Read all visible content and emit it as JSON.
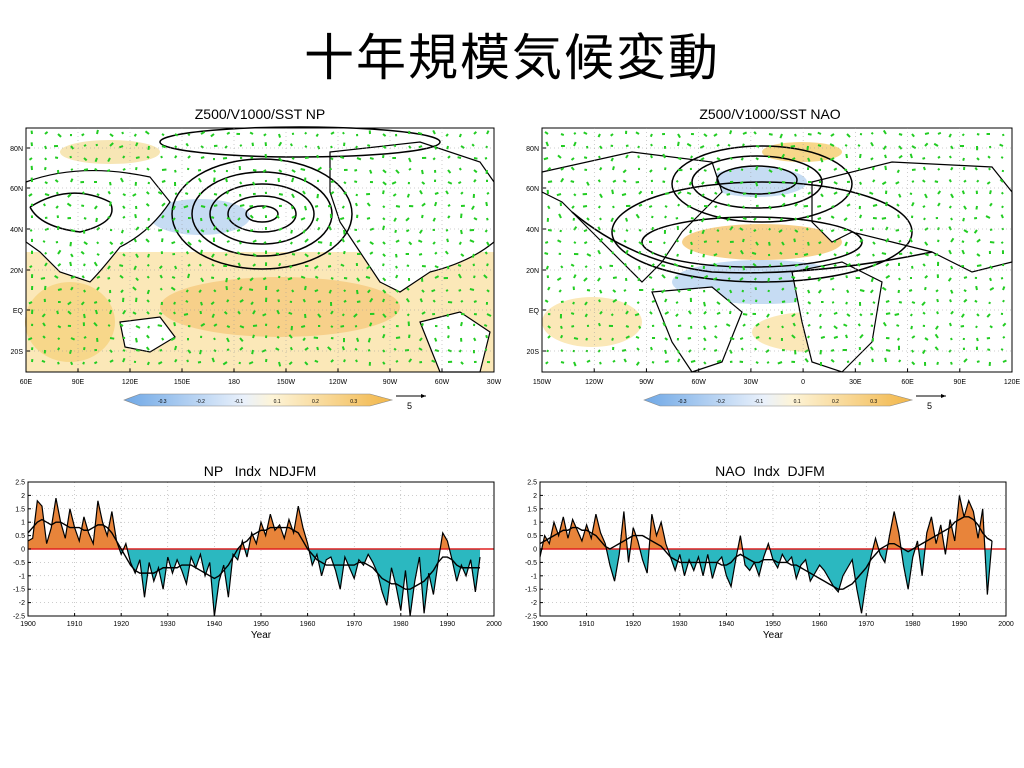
{
  "page": {
    "title": "十年規模気候変動"
  },
  "colors": {
    "orange": "#e8843a",
    "teal": "#2bb8c0",
    "contour": "#000000",
    "vector": "#22cc22",
    "land": "#ffffff",
    "warm_sst": "#f7d78a",
    "cool_sst": "#c6dcf3"
  },
  "maps": [
    {
      "id": "np",
      "title": "Z500/V1000/SST NP",
      "lat_labels": [
        "80N",
        "60N",
        "40N",
        "20N",
        "EQ",
        "20S"
      ],
      "lon_labels": [
        "60E",
        "90E",
        "120E",
        "150E",
        "180",
        "150W",
        "120W",
        "90W",
        "60W",
        "30W"
      ],
      "colorbar_labels": [
        "-0.3",
        "-0.2",
        "-0.1",
        "0.1",
        "0.2",
        "0.3"
      ],
      "vector_ref": "5"
    },
    {
      "id": "nao",
      "title": "Z500/V1000/SST NAO",
      "lat_labels": [
        "80N",
        "60N",
        "40N",
        "20N",
        "EQ",
        "20S"
      ],
      "lon_labels": [
        "150W",
        "120W",
        "90W",
        "60W",
        "30W",
        "0",
        "30E",
        "60E",
        "90E",
        "120E"
      ],
      "colorbar_labels": [
        "-0.3",
        "-0.2",
        "-0.1",
        "0.1",
        "0.2",
        "0.3"
      ],
      "vector_ref": "5"
    }
  ],
  "chart_data": [
    {
      "type": "area",
      "title": "NP   Indx  NDJFM",
      "xlabel": "Year",
      "ylabel": "",
      "xlim": [
        1900,
        2000
      ],
      "ylim": [
        -2.5,
        2.5
      ],
      "x_ticks": [
        "1900",
        "1910",
        "1920",
        "1930",
        "1940",
        "1950",
        "1960",
        "1970",
        "1980",
        "1990",
        "2000"
      ],
      "y_ticks": [
        "2.5",
        "2",
        "1.5",
        "1",
        "0.5",
        "0",
        "-0.5",
        "-1",
        "-1.5",
        "-2",
        "-2.5"
      ],
      "x": [
        1900,
        1901,
        1902,
        1903,
        1904,
        1905,
        1906,
        1907,
        1908,
        1909,
        1910,
        1911,
        1912,
        1913,
        1914,
        1915,
        1916,
        1917,
        1918,
        1919,
        1920,
        1921,
        1922,
        1923,
        1924,
        1925,
        1926,
        1927,
        1928,
        1929,
        1930,
        1931,
        1932,
        1933,
        1934,
        1935,
        1936,
        1937,
        1938,
        1939,
        1940,
        1941,
        1942,
        1943,
        1944,
        1945,
        1946,
        1947,
        1948,
        1949,
        1950,
        1951,
        1952,
        1953,
        1954,
        1955,
        1956,
        1957,
        1958,
        1959,
        1960,
        1961,
        1962,
        1963,
        1964,
        1965,
        1966,
        1967,
        1968,
        1969,
        1970,
        1971,
        1972,
        1973,
        1974,
        1975,
        1976,
        1977,
        1978,
        1979,
        1980,
        1981,
        1982,
        1983,
        1984,
        1985,
        1986,
        1987,
        1988,
        1989,
        1990,
        1991,
        1992,
        1993,
        1994,
        1995,
        1996,
        1997
      ],
      "values": [
        0.3,
        0.4,
        1.8,
        1.6,
        0.2,
        0.8,
        1.9,
        1.0,
        0.4,
        1.5,
        0.8,
        0.3,
        1.2,
        0.6,
        0.2,
        1.8,
        1.0,
        0.5,
        1.4,
        0.3,
        -0.2,
        0.2,
        -0.5,
        -0.9,
        -0.4,
        -1.8,
        -0.5,
        -1.2,
        -0.7,
        -1.5,
        -0.3,
        -0.9,
        -0.4,
        -0.8,
        -1.3,
        -0.3,
        -0.7,
        -0.2,
        -1.0,
        -0.5,
        -2.5,
        -1.2,
        -0.6,
        -1.8,
        -0.2,
        -0.4,
        0.3,
        -0.3,
        0.6,
        0.2,
        1.0,
        0.5,
        1.3,
        0.7,
        0.9,
        0.4,
        1.1,
        0.6,
        1.6,
        0.8,
        0.2,
        -0.6,
        -0.2,
        -1.0,
        -0.4,
        -0.3,
        -0.8,
        -1.5,
        -0.3,
        -0.7,
        -1.1,
        -0.4,
        -0.6,
        -0.2,
        -0.5,
        -0.9,
        -1.6,
        -2.1,
        -0.7,
        -1.4,
        -2.3,
        -0.8,
        -2.5,
        -1.2,
        -0.3,
        -2.4,
        -0.9,
        -1.7,
        -0.5,
        0.6,
        0.3,
        -0.4,
        -1.2,
        -0.6,
        -1.0,
        -0.4,
        -1.6,
        -0.3
      ],
      "smooth": [
        0.6,
        0.8,
        1.0,
        1.1,
        1.0,
        0.9,
        1.0,
        1.0,
        0.9,
        0.8,
        0.8,
        0.8,
        0.7,
        0.7,
        0.8,
        0.9,
        0.9,
        0.8,
        0.6,
        0.3,
        0.0,
        -0.3,
        -0.6,
        -0.8,
        -0.9,
        -0.9,
        -0.9,
        -0.9,
        -0.8,
        -0.7,
        -0.7,
        -0.7,
        -0.7,
        -0.6,
        -0.6,
        -0.6,
        -0.7,
        -0.8,
        -0.9,
        -1.0,
        -1.1,
        -1.0,
        -0.8,
        -0.6,
        -0.3,
        0.0,
        0.2,
        0.3,
        0.5,
        0.6,
        0.7,
        0.7,
        0.8,
        0.8,
        0.8,
        0.8,
        0.8,
        0.7,
        0.6,
        0.3,
        0.0,
        -0.2,
        -0.4,
        -0.5,
        -0.6,
        -0.6,
        -0.6,
        -0.6,
        -0.6,
        -0.6,
        -0.6,
        -0.5,
        -0.5,
        -0.6,
        -0.7,
        -0.9,
        -1.1,
        -1.2,
        -1.3,
        -1.3,
        -1.4,
        -1.5,
        -1.5,
        -1.4,
        -1.3,
        -1.2,
        -1.0,
        -0.8,
        -0.5,
        -0.3,
        -0.3,
        -0.4,
        -0.6,
        -0.7,
        -0.7,
        -0.7,
        -0.7,
        -0.7
      ],
      "positive_color": "#e8843a",
      "negative_color": "#2bb8c0"
    },
    {
      "type": "area",
      "title": "NAO  Indx  DJFM",
      "xlabel": "Year",
      "ylabel": "",
      "xlim": [
        1900,
        2000
      ],
      "ylim": [
        -2.5,
        2.5
      ],
      "x_ticks": [
        "1900",
        "1910",
        "1920",
        "1930",
        "1940",
        "1950",
        "1960",
        "1970",
        "1980",
        "1990",
        "2000"
      ],
      "y_ticks": [
        "2.5",
        "2",
        "1.5",
        "1",
        "0.5",
        "0",
        "-0.5",
        "-1",
        "-1.5",
        "-2",
        "-2.5"
      ],
      "x": [
        1900,
        1901,
        1902,
        1903,
        1904,
        1905,
        1906,
        1907,
        1908,
        1909,
        1910,
        1911,
        1912,
        1913,
        1914,
        1915,
        1916,
        1917,
        1918,
        1919,
        1920,
        1921,
        1922,
        1923,
        1924,
        1925,
        1926,
        1927,
        1928,
        1929,
        1930,
        1931,
        1932,
        1933,
        1934,
        1935,
        1936,
        1937,
        1938,
        1939,
        1940,
        1941,
        1942,
        1943,
        1944,
        1945,
        1946,
        1947,
        1948,
        1949,
        1950,
        1951,
        1952,
        1953,
        1954,
        1955,
        1956,
        1957,
        1958,
        1959,
        1960,
        1961,
        1962,
        1963,
        1964,
        1965,
        1966,
        1967,
        1968,
        1969,
        1970,
        1971,
        1972,
        1973,
        1974,
        1975,
        1976,
        1977,
        1978,
        1979,
        1980,
        1981,
        1982,
        1983,
        1984,
        1985,
        1986,
        1987,
        1988,
        1989,
        1990,
        1991,
        1992,
        1993,
        1994,
        1995,
        1996,
        1997
      ],
      "values": [
        -0.3,
        0.5,
        0.2,
        1.0,
        0.5,
        1.2,
        0.4,
        1.1,
        0.7,
        0.3,
        0.9,
        0.4,
        1.3,
        0.6,
        0.2,
        -0.6,
        -1.2,
        -0.2,
        1.4,
        -0.5,
        0.8,
        0.3,
        -0.4,
        -0.9,
        1.3,
        0.5,
        1.0,
        0.2,
        -0.3,
        -0.8,
        -0.2,
        -1.0,
        -0.4,
        -0.8,
        -0.3,
        -1.0,
        -0.2,
        -1.1,
        -0.5,
        -0.3,
        -1.0,
        -1.4,
        -0.4,
        0.5,
        -0.6,
        -0.8,
        -0.5,
        -1.0,
        -0.3,
        0.2,
        -0.4,
        -0.7,
        -0.2,
        -0.5,
        -0.3,
        -1.1,
        -0.6,
        -0.4,
        -1.2,
        -0.9,
        -0.6,
        -0.8,
        -1.1,
        -1.4,
        -1.6,
        -1.0,
        -0.7,
        -0.4,
        -1.5,
        -2.4,
        -1.2,
        -0.3,
        0.4,
        -0.2,
        -0.5,
        0.5,
        1.4,
        0.6,
        -0.6,
        -1.5,
        -0.3,
        0.3,
        -1.0,
        0.6,
        1.2,
        0.2,
        0.9,
        -0.2,
        1.1,
        0.3,
        2.0,
        1.2,
        1.8,
        1.4,
        0.4,
        1.5,
        -1.7,
        0.3
      ],
      "smooth": [
        0.2,
        0.3,
        0.4,
        0.5,
        0.6,
        0.7,
        0.7,
        0.8,
        0.8,
        0.7,
        0.7,
        0.6,
        0.5,
        0.3,
        0.1,
        0.0,
        0.1,
        0.2,
        0.3,
        0.4,
        0.5,
        0.5,
        0.5,
        0.4,
        0.3,
        0.2,
        0.1,
        -0.1,
        -0.3,
        -0.4,
        -0.5,
        -0.5,
        -0.5,
        -0.5,
        -0.5,
        -0.5,
        -0.5,
        -0.5,
        -0.5,
        -0.6,
        -0.6,
        -0.5,
        -0.3,
        -0.2,
        -0.3,
        -0.4,
        -0.5,
        -0.5,
        -0.4,
        -0.4,
        -0.4,
        -0.5,
        -0.5,
        -0.5,
        -0.6,
        -0.6,
        -0.7,
        -0.8,
        -0.9,
        -1.0,
        -1.1,
        -1.2,
        -1.3,
        -1.4,
        -1.5,
        -1.5,
        -1.4,
        -1.3,
        -1.1,
        -0.9,
        -0.7,
        -0.4,
        -0.2,
        0.0,
        0.1,
        0.2,
        0.2,
        0.1,
        0.0,
        -0.1,
        0.0,
        0.1,
        0.2,
        0.3,
        0.4,
        0.5,
        0.6,
        0.7,
        0.8,
        1.0,
        1.1,
        1.2,
        1.2,
        1.1,
        0.9,
        0.6,
        0.4,
        0.3
      ],
      "positive_color": "#e8843a",
      "negative_color": "#2bb8c0"
    }
  ]
}
